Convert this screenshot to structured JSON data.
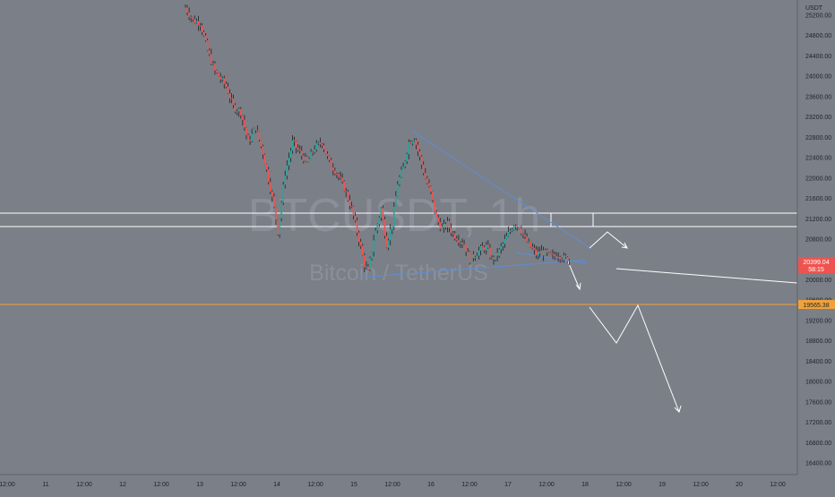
{
  "watermark": {
    "symbol": "BTCUSDT, 1h",
    "name": "Bitcoin / TetherUS"
  },
  "currency_label": "USDT",
  "colors": {
    "background": "#7b7f87",
    "up_candle": "#26a69a",
    "down_candle": "#ef5350",
    "wick": "#1e2129",
    "trendline": "#5b8fd6",
    "level_line": "#ffffff",
    "orange_line": "#f0a23a",
    "price_badge": "#ef5350"
  },
  "current_price": {
    "value": 20399.04,
    "label": "20399.04",
    "countdown": "58:15"
  },
  "orange_level": {
    "value": 19565.38,
    "label": "19565.38"
  },
  "chart_data": {
    "type": "candlestick",
    "ylim": [
      16200,
      25300
    ],
    "y_ticks": [
      "25200.00",
      "24800.00",
      "24400.00",
      "24000.00",
      "23600.00",
      "23200.00",
      "22800.00",
      "22400.00",
      "22000.00",
      "21600.00",
      "21200.00",
      "20800.00",
      "20400.00",
      "20000.00",
      "19600.00",
      "19200.00",
      "18800.00",
      "18400.00",
      "18000.00",
      "17600.00",
      "17200.00",
      "16800.00",
      "16400.00"
    ],
    "x_ticks": [
      "12:00",
      "11",
      "12:00",
      "12",
      "12:00",
      "13",
      "12:00",
      "14",
      "12:00",
      "15",
      "12:00",
      "16",
      "12:00",
      "17",
      "12:00",
      "18",
      "12:00",
      "19",
      "12:00",
      "20",
      "12:00"
    ],
    "price_path": [
      {
        "x": 0,
        "y": 25350
      },
      {
        "x": 4,
        "y": 25100
      },
      {
        "x": 8,
        "y": 25050
      },
      {
        "x": 12,
        "y": 24500
      },
      {
        "x": 16,
        "y": 24100
      },
      {
        "x": 22,
        "y": 23800
      },
      {
        "x": 26,
        "y": 23400
      },
      {
        "x": 30,
        "y": 23300
      },
      {
        "x": 34,
        "y": 22700
      },
      {
        "x": 38,
        "y": 23000
      },
      {
        "x": 42,
        "y": 22500
      },
      {
        "x": 46,
        "y": 21800
      },
      {
        "x": 49,
        "y": 21200
      },
      {
        "x": 50,
        "y": 20950
      },
      {
        "x": 54,
        "y": 22100
      },
      {
        "x": 58,
        "y": 22700
      },
      {
        "x": 62,
        "y": 22500
      },
      {
        "x": 66,
        "y": 22300
      },
      {
        "x": 70,
        "y": 22600
      },
      {
        "x": 74,
        "y": 22700
      },
      {
        "x": 78,
        "y": 22300
      },
      {
        "x": 82,
        "y": 22100
      },
      {
        "x": 86,
        "y": 21800
      },
      {
        "x": 90,
        "y": 21400
      },
      {
        "x": 94,
        "y": 20800
      },
      {
        "x": 97,
        "y": 20300
      },
      {
        "x": 99,
        "y": 20150
      },
      {
        "x": 102,
        "y": 20800
      },
      {
        "x": 106,
        "y": 21400
      },
      {
        "x": 109,
        "y": 20700
      },
      {
        "x": 112,
        "y": 21100
      },
      {
        "x": 115,
        "y": 21900
      },
      {
        "x": 118,
        "y": 22200
      },
      {
        "x": 121,
        "y": 22700
      },
      {
        "x": 124,
        "y": 22800
      },
      {
        "x": 127,
        "y": 22400
      },
      {
        "x": 130,
        "y": 22000
      },
      {
        "x": 133,
        "y": 21700
      },
      {
        "x": 136,
        "y": 21200
      },
      {
        "x": 139,
        "y": 21000
      },
      {
        "x": 142,
        "y": 21100
      },
      {
        "x": 145,
        "y": 20900
      },
      {
        "x": 148,
        "y": 20800
      },
      {
        "x": 151,
        "y": 20700
      },
      {
        "x": 154,
        "y": 20400
      },
      {
        "x": 157,
        "y": 20500
      },
      {
        "x": 160,
        "y": 20600
      },
      {
        "x": 163,
        "y": 20650
      },
      {
        "x": 166,
        "y": 20400
      },
      {
        "x": 169,
        "y": 20500
      },
      {
        "x": 172,
        "y": 20700
      },
      {
        "x": 175,
        "y": 20900
      },
      {
        "x": 178,
        "y": 21100
      },
      {
        "x": 181,
        "y": 21050
      },
      {
        "x": 184,
        "y": 20800
      },
      {
        "x": 187,
        "y": 20650
      },
      {
        "x": 190,
        "y": 20500
      },
      {
        "x": 193,
        "y": 20550
      },
      {
        "x": 196,
        "y": 20500
      },
      {
        "x": 199,
        "y": 20450
      },
      {
        "x": 202,
        "y": 20500
      },
      {
        "x": 205,
        "y": 20420
      },
      {
        "x": 208,
        "y": 20400
      }
    ]
  }
}
